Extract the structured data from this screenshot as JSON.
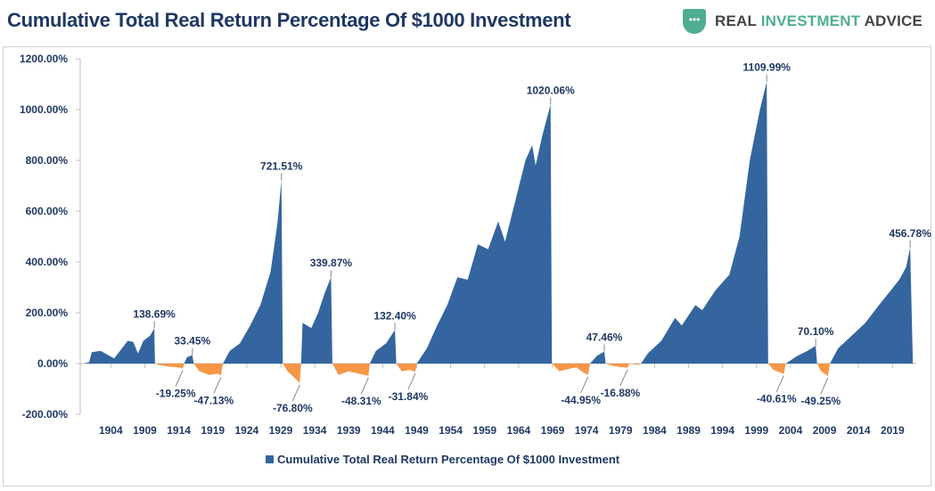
{
  "header": {
    "title": "Cumulative Total Real Return Percentage Of $1000 Investment",
    "logo": {
      "word1": "REAL",
      "word2": "INVESTMENT",
      "word3": "ADVICE"
    }
  },
  "chart_data": {
    "type": "area",
    "title": "Cumulative Total Real Return Percentage Of $1000 Investment",
    "xlabel": "",
    "ylabel": "",
    "ylim": [
      -200,
      1200
    ],
    "xlim": [
      1899.5,
      2022.5
    ],
    "yticks": [
      -200,
      0,
      200,
      400,
      600,
      800,
      1000,
      1200
    ],
    "ytick_labels": [
      "-200.00%",
      "0.00%",
      "200.00%",
      "400.00%",
      "600.00%",
      "800.00%",
      "1000.00%",
      "1200.00%"
    ],
    "xticks": [
      1904,
      1909,
      1914,
      1919,
      1924,
      1929,
      1934,
      1939,
      1944,
      1949,
      1954,
      1959,
      1964,
      1969,
      1974,
      1979,
      1984,
      1989,
      1994,
      1999,
      2004,
      2009,
      2014,
      2019
    ],
    "legend": {
      "label": "Cumulative Total Real Return Percentage Of $1000 Investment",
      "position": "bottom"
    },
    "colors": {
      "positive": "#34659f",
      "negative": "#f79646",
      "text": "#1f3864",
      "axis": "#bfbfbf"
    },
    "points": [
      [
        1900,
        0
      ],
      [
        1900.8,
        5
      ],
      [
        1901.2,
        45
      ],
      [
        1902.5,
        50
      ],
      [
        1903.5,
        35
      ],
      [
        1904.5,
        20
      ],
      [
        1905.5,
        55
      ],
      [
        1906.5,
        90
      ],
      [
        1907.3,
        85
      ],
      [
        1908,
        40
      ],
      [
        1908.8,
        90
      ],
      [
        1909.8,
        110
      ],
      [
        1910.4,
        138.69
      ],
      [
        1910.5,
        0
      ],
      [
        1911,
        -5
      ],
      [
        1912.5,
        -12
      ],
      [
        1914,
        -15
      ],
      [
        1914.6,
        -19.25
      ],
      [
        1914.8,
        0
      ],
      [
        1915.2,
        25
      ],
      [
        1916,
        33.45
      ],
      [
        1916.2,
        0
      ],
      [
        1917,
        -30
      ],
      [
        1918.5,
        -45
      ],
      [
        1919.8,
        -40
      ],
      [
        1920.2,
        -47.13
      ],
      [
        1920.5,
        0
      ],
      [
        1921.5,
        50
      ],
      [
        1923,
        80
      ],
      [
        1924.5,
        150
      ],
      [
        1926,
        230
      ],
      [
        1927.5,
        360
      ],
      [
        1928.5,
        550
      ],
      [
        1929.1,
        721.51
      ],
      [
        1929.3,
        0
      ],
      [
        1930,
        -30
      ],
      [
        1931,
        -55
      ],
      [
        1931.8,
        -76.8
      ],
      [
        1932,
        0
      ],
      [
        1932.2,
        160
      ],
      [
        1933.5,
        140
      ],
      [
        1934.5,
        200
      ],
      [
        1935.5,
        280
      ],
      [
        1936.4,
        339.87
      ],
      [
        1936.6,
        0
      ],
      [
        1937.5,
        -45
      ],
      [
        1939,
        -30
      ],
      [
        1940.5,
        -40
      ],
      [
        1941.9,
        -48.31
      ],
      [
        1942.1,
        0
      ],
      [
        1943,
        50
      ],
      [
        1944.5,
        80
      ],
      [
        1945.8,
        132.4
      ],
      [
        1946,
        0
      ],
      [
        1946.8,
        -30
      ],
      [
        1948,
        -25
      ],
      [
        1948.8,
        -31.84
      ],
      [
        1949,
        0
      ],
      [
        1950.5,
        60
      ],
      [
        1952,
        150
      ],
      [
        1953.5,
        230
      ],
      [
        1955,
        340
      ],
      [
        1956.5,
        330
      ],
      [
        1958,
        470
      ],
      [
        1959.5,
        450
      ],
      [
        1961,
        560
      ],
      [
        1962,
        480
      ],
      [
        1963.5,
        640
      ],
      [
        1965,
        800
      ],
      [
        1966,
        860
      ],
      [
        1966.5,
        780
      ],
      [
        1967.5,
        900
      ],
      [
        1968.7,
        1020.06
      ],
      [
        1968.9,
        0
      ],
      [
        1970,
        -30
      ],
      [
        1971.5,
        -20
      ],
      [
        1972.5,
        -15
      ],
      [
        1973.5,
        -35
      ],
      [
        1974.2,
        -44.95
      ],
      [
        1974.5,
        0
      ],
      [
        1975.5,
        30
      ],
      [
        1976.6,
        47.46
      ],
      [
        1976.8,
        0
      ],
      [
        1978,
        -10
      ],
      [
        1979.5,
        -15
      ],
      [
        1980,
        -16.88
      ],
      [
        1980.3,
        0
      ],
      [
        1981.5,
        -5
      ],
      [
        1982,
        0
      ],
      [
        1983,
        40
      ],
      [
        1985,
        90
      ],
      [
        1987,
        180
      ],
      [
        1988,
        150
      ],
      [
        1990,
        230
      ],
      [
        1991,
        210
      ],
      [
        1993,
        290
      ],
      [
        1995,
        350
      ],
      [
        1996.5,
        500
      ],
      [
        1998,
        800
      ],
      [
        1999.5,
        1000
      ],
      [
        2000.5,
        1109.99
      ],
      [
        2000.7,
        0
      ],
      [
        2001.5,
        -25
      ],
      [
        2002.5,
        -35
      ],
      [
        2003,
        -40.61
      ],
      [
        2003.3,
        0
      ],
      [
        2005,
        30
      ],
      [
        2006.5,
        50
      ],
      [
        2007.7,
        70.1
      ],
      [
        2007.9,
        0
      ],
      [
        2008.5,
        -30
      ],
      [
        2009.5,
        -49.25
      ],
      [
        2009.8,
        0
      ],
      [
        2011,
        60
      ],
      [
        2013,
        110
      ],
      [
        2015,
        160
      ],
      [
        2017,
        230
      ],
      [
        2018.5,
        280
      ],
      [
        2020,
        330
      ],
      [
        2021,
        380
      ],
      [
        2021.6,
        456.78
      ],
      [
        2022,
        0
      ]
    ],
    "annotations": [
      {
        "year": 1910.4,
        "value": 138.69,
        "label": "138.69%"
      },
      {
        "year": 1914.6,
        "value": -19.25,
        "label": "-19.25%"
      },
      {
        "year": 1916,
        "value": 33.45,
        "label": "33.45%"
      },
      {
        "year": 1920.2,
        "value": -47.13,
        "label": "-47.13%"
      },
      {
        "year": 1929.1,
        "value": 721.51,
        "label": "721.51%"
      },
      {
        "year": 1931.8,
        "value": -76.8,
        "label": "-76.80%"
      },
      {
        "year": 1936.4,
        "value": 339.87,
        "label": "339.87%"
      },
      {
        "year": 1941.9,
        "value": -48.31,
        "label": "-48.31%"
      },
      {
        "year": 1945.8,
        "value": 132.4,
        "label": "132.40%"
      },
      {
        "year": 1948.8,
        "value": -31.84,
        "label": "-31.84%"
      },
      {
        "year": 1968.7,
        "value": 1020.06,
        "label": "1020.06%"
      },
      {
        "year": 1974.2,
        "value": -44.95,
        "label": "-44.95%"
      },
      {
        "year": 1976.6,
        "value": 47.46,
        "label": "47.46%"
      },
      {
        "year": 1980,
        "value": -16.88,
        "label": "-16.88%"
      },
      {
        "year": 2000.5,
        "value": 1109.99,
        "label": "1109.99%"
      },
      {
        "year": 2003,
        "value": -40.61,
        "label": "-40.61%"
      },
      {
        "year": 2007.7,
        "value": 70.1,
        "label": "70.10%"
      },
      {
        "year": 2009.5,
        "value": -49.25,
        "label": "-49.25%"
      },
      {
        "year": 2021.6,
        "value": 456.78,
        "label": "456.78%"
      }
    ]
  }
}
